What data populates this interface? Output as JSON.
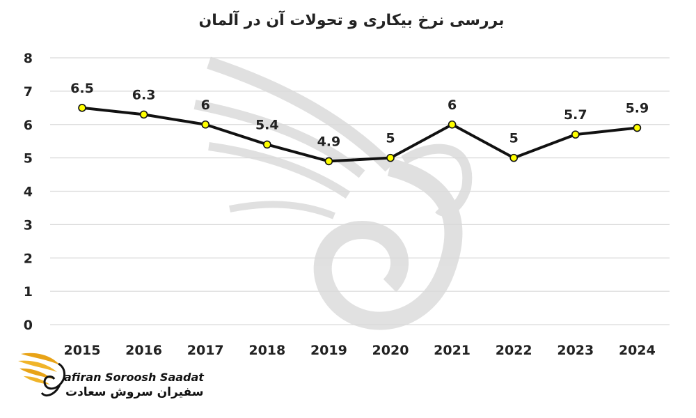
{
  "colors": {
    "line": "#111111",
    "marker_fill": "#ffff00",
    "marker_stroke": "#111111",
    "grid": "#d9d9d9",
    "logo_gold": "#e8a317"
  },
  "chart_data": {
    "type": "line",
    "title": "بررسی نرخ بیکاری و تحولات آن در آلمان",
    "categories": [
      "2015",
      "2016",
      "2017",
      "2018",
      "2019",
      "2020",
      "2021",
      "2022",
      "2023",
      "2024"
    ],
    "values": [
      6.5,
      6.3,
      6,
      5.4,
      4.9,
      5,
      6,
      5,
      5.7,
      5.9
    ],
    "data_labels": [
      "6.5",
      "6.3",
      "6",
      "5.4",
      "4.9",
      "5",
      "6",
      "5",
      "5.7",
      "5.9"
    ],
    "y_ticks": [
      "0",
      "1",
      "2",
      "3",
      "4",
      "5",
      "6",
      "7",
      "8"
    ],
    "ylim": [
      0,
      8
    ],
    "xlabel": "",
    "ylabel": "",
    "grid": true,
    "legend": "none",
    "markers": "circle"
  },
  "logo": {
    "name_en": "afiran Soroosh Saadat",
    "name_fa": "سفیران سروش سعادت",
    "icon": "swan-wing-logo-icon"
  },
  "watermark": {
    "icon": "swan-watermark-icon"
  }
}
